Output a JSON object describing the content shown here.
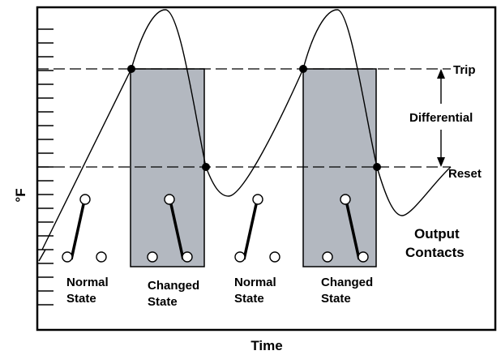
{
  "labels": {
    "trip": "Trip",
    "differential": "Differential",
    "reset": "Reset",
    "output_contacts_line1": "Output",
    "output_contacts_line2": "Contacts",
    "y_axis": "°F",
    "x_axis": "Time"
  },
  "states": [
    {
      "line1": "Normal",
      "line2": "State"
    },
    {
      "line1": "Changed",
      "line2": "State"
    },
    {
      "line1": "Normal",
      "line2": "State"
    },
    {
      "line1": "Changed",
      "line2": "State"
    }
  ],
  "colors": {
    "shaded_region": "#b3b8c0",
    "line": "#000000",
    "background": "#ffffff"
  }
}
